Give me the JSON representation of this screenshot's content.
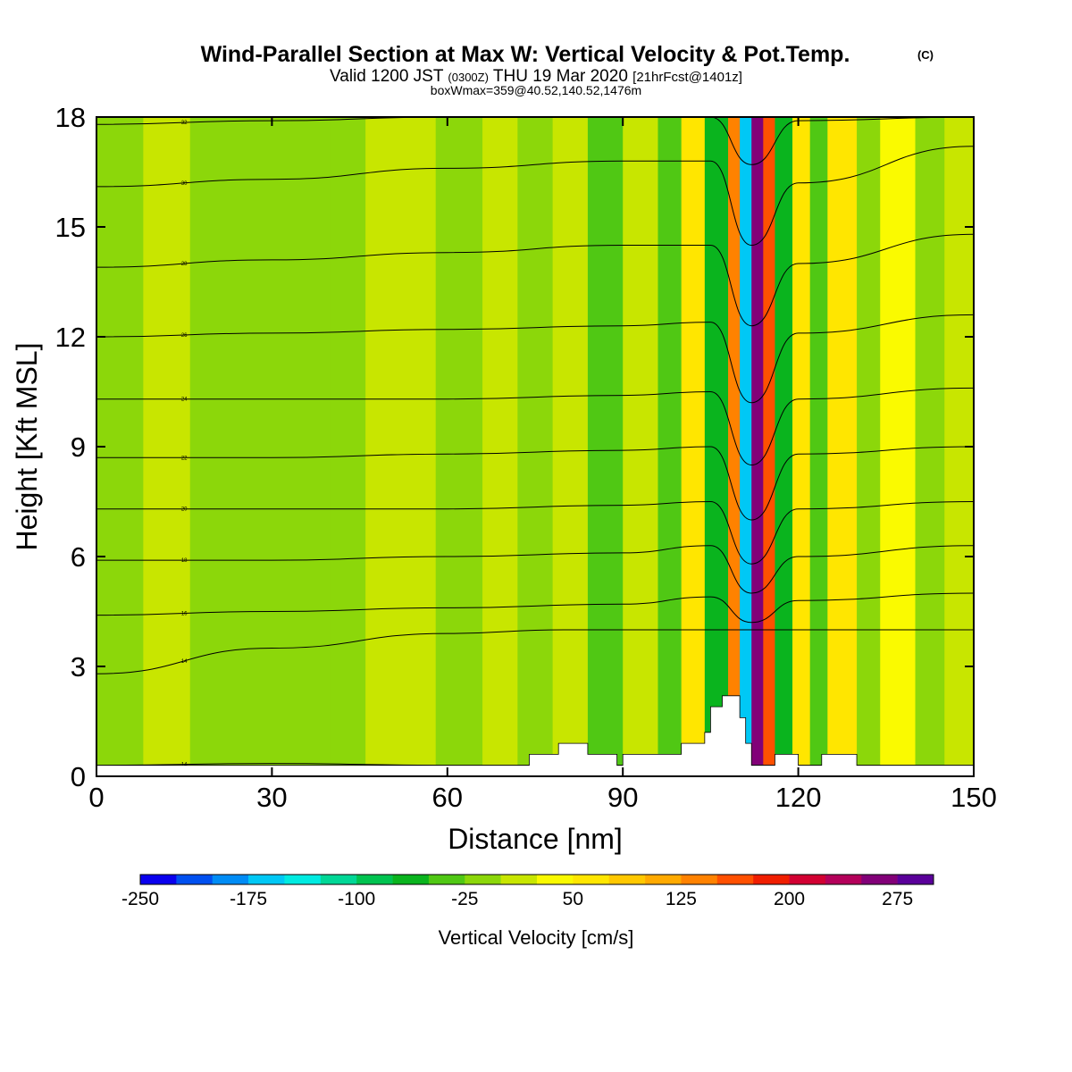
{
  "header": {
    "title": "Wind-Parallel Section at Max W: Vertical Velocity & Pot.Temp.",
    "copyright": "(C)",
    "valid_prefix": "Valid 1200 JST",
    "valid_utc": "(0300Z)",
    "valid_date": "THU 19 Mar 2020",
    "forecast_info": "[21hrFcst@1401z]",
    "box_info": "boxWmax=359@40.52,140.52,1476m"
  },
  "colors": {
    "terrain": "#ffffff",
    "contour": "#000000",
    "background_field": "#c8e600"
  },
  "chart_data": {
    "type": "heatmap",
    "xlabel": "Distance [nm]",
    "ylabel": "Height [Kft MSL]",
    "xlim": [
      0,
      150
    ],
    "ylim": [
      0,
      18
    ],
    "x_ticks": [
      0,
      30,
      60,
      90,
      120,
      150
    ],
    "y_ticks": [
      0,
      3,
      6,
      9,
      12,
      15,
      18
    ],
    "colorbar": {
      "label": "Vertical Velocity [cm/s]",
      "min": -250,
      "max": 300,
      "step": 25,
      "tick_values": [
        -250,
        -175,
        -100,
        -25,
        50,
        125,
        200,
        275
      ],
      "tick_labels": [
        "-250",
        "-175",
        "-100",
        "-25",
        "50",
        "125",
        "200",
        "275"
      ],
      "colors": [
        "#0a00ee",
        "#0050f0",
        "#008cf5",
        "#00c8f5",
        "#00ebe1",
        "#00d796",
        "#00c350",
        "#0ab41e",
        "#50c814",
        "#8cd70a",
        "#c8e600",
        "#fafa00",
        "#ffe600",
        "#ffc800",
        "#ffaa00",
        "#ff8200",
        "#ff5000",
        "#f01e00",
        "#d20032",
        "#b4005a",
        "#820078",
        "#5a009a"
      ]
    },
    "field_bands": [
      {
        "x": [
          0,
          8
        ],
        "w": -10
      },
      {
        "x": [
          8,
          16
        ],
        "w": 0
      },
      {
        "x": [
          16,
          25
        ],
        "w": -5
      },
      {
        "x": [
          25,
          40
        ],
        "w": -20
      },
      {
        "x": [
          40,
          46
        ],
        "w": -5
      },
      {
        "x": [
          46,
          58
        ],
        "w": 5
      },
      {
        "x": [
          58,
          66
        ],
        "w": -15
      },
      {
        "x": [
          66,
          72
        ],
        "w": 10
      },
      {
        "x": [
          72,
          78
        ],
        "w": -25
      },
      {
        "x": [
          78,
          84
        ],
        "w": 10
      },
      {
        "x": [
          84,
          90
        ],
        "w": -30
      },
      {
        "x": [
          90,
          96
        ],
        "w": 20
      },
      {
        "x": [
          96,
          100
        ],
        "w": -40
      },
      {
        "x": [
          100,
          104
        ],
        "w": 60
      },
      {
        "x": [
          104,
          108
        ],
        "w": -60
      },
      {
        "x": [
          108,
          110
        ],
        "w": 130
      },
      {
        "x": [
          110,
          112
        ],
        "w": -170
      },
      {
        "x": [
          112,
          114
        ],
        "w": 270
      },
      {
        "x": [
          114,
          116
        ],
        "w": 150
      },
      {
        "x": [
          116,
          119
        ],
        "w": -60
      },
      {
        "x": [
          119,
          122
        ],
        "w": 60
      },
      {
        "x": [
          122,
          125
        ],
        "w": -50
      },
      {
        "x": [
          125,
          130
        ],
        "w": 50
      },
      {
        "x": [
          130,
          134
        ],
        "w": -15
      },
      {
        "x": [
          134,
          140
        ],
        "w": 40
      },
      {
        "x": [
          140,
          145
        ],
        "w": -20
      },
      {
        "x": [
          145,
          150
        ],
        "w": 10
      }
    ],
    "terrain": {
      "x": [
        0,
        74,
        74,
        79,
        79,
        84,
        84,
        89,
        89,
        90,
        90,
        100,
        100,
        104,
        104,
        105,
        105,
        107,
        107,
        110,
        110,
        111,
        111,
        112,
        112,
        116,
        116,
        120,
        120,
        124,
        124,
        130,
        130,
        150
      ],
      "h": [
        0.3,
        0.3,
        0.6,
        0.6,
        0.9,
        0.9,
        0.6,
        0.6,
        0.3,
        0.3,
        0.6,
        0.6,
        0.9,
        0.9,
        1.2,
        1.2,
        1.9,
        1.9,
        2.2,
        2.2,
        1.6,
        1.6,
        0.9,
        0.9,
        0.3,
        0.3,
        0.6,
        0.6,
        0.3,
        0.3,
        0.6,
        0.6,
        0.3,
        0.3
      ]
    },
    "isentropes": [
      {
        "label": "14",
        "x": [
          0,
          30,
          60,
          90,
          150
        ],
        "h": [
          0.3,
          0.35,
          0.3,
          0.3,
          0.3
        ]
      },
      {
        "label": "14",
        "x": [
          0,
          30,
          60,
          80,
          90,
          150
        ],
        "h": [
          2.8,
          3.5,
          3.9,
          4.0,
          4.0,
          4.0
        ]
      },
      {
        "label": "16",
        "x": [
          0,
          30,
          60,
          90,
          105,
          112,
          120,
          150
        ],
        "h": [
          4.4,
          4.5,
          4.6,
          4.7,
          4.9,
          4.2,
          4.8,
          5.0
        ]
      },
      {
        "label": "18",
        "x": [
          0,
          30,
          60,
          90,
          105,
          112,
          120,
          150
        ],
        "h": [
          5.9,
          5.9,
          6.0,
          6.1,
          6.3,
          5.0,
          6.0,
          6.3
        ]
      },
      {
        "label": "20",
        "x": [
          0,
          30,
          60,
          90,
          105,
          112,
          120,
          150
        ],
        "h": [
          7.3,
          7.3,
          7.3,
          7.4,
          7.5,
          5.8,
          7.3,
          7.5
        ]
      },
      {
        "label": "22",
        "x": [
          0,
          30,
          60,
          90,
          105,
          112,
          120,
          150
        ],
        "h": [
          8.7,
          8.7,
          8.8,
          8.9,
          9.0,
          7.0,
          8.8,
          9.0
        ]
      },
      {
        "label": "24",
        "x": [
          0,
          30,
          60,
          90,
          105,
          112,
          120,
          150
        ],
        "h": [
          10.3,
          10.3,
          10.3,
          10.4,
          10.5,
          8.5,
          10.3,
          10.6
        ]
      },
      {
        "label": "26",
        "x": [
          0,
          30,
          60,
          90,
          105,
          112,
          120,
          150
        ],
        "h": [
          12.0,
          12.1,
          12.2,
          12.3,
          12.4,
          10.2,
          12.1,
          12.6
        ]
      },
      {
        "label": "28",
        "x": [
          0,
          30,
          60,
          90,
          105,
          112,
          120,
          150
        ],
        "h": [
          13.9,
          14.1,
          14.3,
          14.5,
          14.5,
          12.3,
          14.0,
          14.8
        ]
      },
      {
        "label": "30",
        "x": [
          0,
          30,
          60,
          90,
          105,
          112,
          120,
          150
        ],
        "h": [
          16.1,
          16.3,
          16.6,
          16.8,
          16.8,
          14.5,
          16.2,
          17.2
        ]
      },
      {
        "label": "32",
        "x": [
          0,
          30,
          60,
          90,
          105,
          112,
          120,
          150
        ],
        "h": [
          17.8,
          17.9,
          18.0,
          18.0,
          18.0,
          16.7,
          17.9,
          18.0
        ]
      }
    ]
  }
}
